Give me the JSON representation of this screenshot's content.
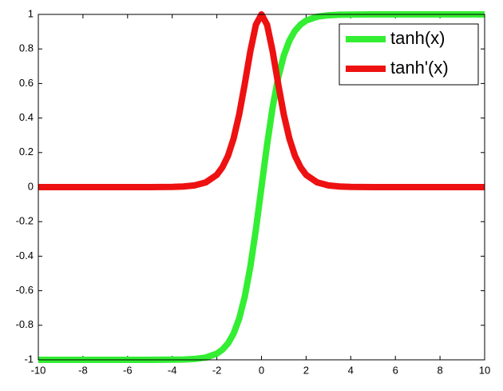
{
  "chart_data": {
    "type": "line",
    "x": [
      -10,
      -9,
      -8,
      -7,
      -6,
      -5,
      -4,
      -3.5,
      -3,
      -2.5,
      -2,
      -1.75,
      -1.5,
      -1.25,
      -1,
      -0.75,
      -0.5,
      -0.25,
      0,
      0.25,
      0.5,
      0.75,
      1,
      1.25,
      1.5,
      1.75,
      2,
      2.5,
      3,
      3.5,
      4,
      5,
      6,
      7,
      8,
      9,
      10
    ],
    "series": [
      {
        "name": "tanh(x)",
        "color": "#33ee33",
        "values": [
          -1,
          -1,
          -1,
          -1,
          -1,
          -1,
          -0.999,
          -0.998,
          -0.995,
          -0.987,
          -0.964,
          -0.941,
          -0.905,
          -0.848,
          -0.762,
          -0.635,
          -0.462,
          -0.245,
          0,
          0.245,
          0.462,
          0.635,
          0.762,
          0.848,
          0.905,
          0.941,
          0.964,
          0.987,
          0.995,
          0.998,
          0.999,
          1,
          1,
          1,
          1,
          1,
          1
        ]
      },
      {
        "name": "tanh'(x)",
        "color": "#ee1111",
        "values": [
          0,
          0,
          0,
          0,
          0,
          0.0002,
          0.0013,
          0.0036,
          0.0099,
          0.027,
          0.071,
          0.115,
          0.181,
          0.281,
          0.42,
          0.597,
          0.786,
          0.94,
          1,
          0.94,
          0.786,
          0.597,
          0.42,
          0.281,
          0.181,
          0.115,
          0.071,
          0.027,
          0.0099,
          0.0036,
          0.0013,
          0.0002,
          0,
          0,
          0,
          0,
          0
        ]
      }
    ],
    "xlim": [
      -10,
      10
    ],
    "xticks": [
      -10,
      -8,
      -6,
      -4,
      -2,
      0,
      2,
      4,
      6,
      8,
      10
    ],
    "ylim": [
      -1,
      1
    ],
    "yticks": [
      -1,
      -0.8,
      -0.6,
      -0.4,
      -0.2,
      0,
      0.2,
      0.4,
      0.6,
      0.8,
      1
    ],
    "grid": false,
    "legend": "northeast"
  }
}
